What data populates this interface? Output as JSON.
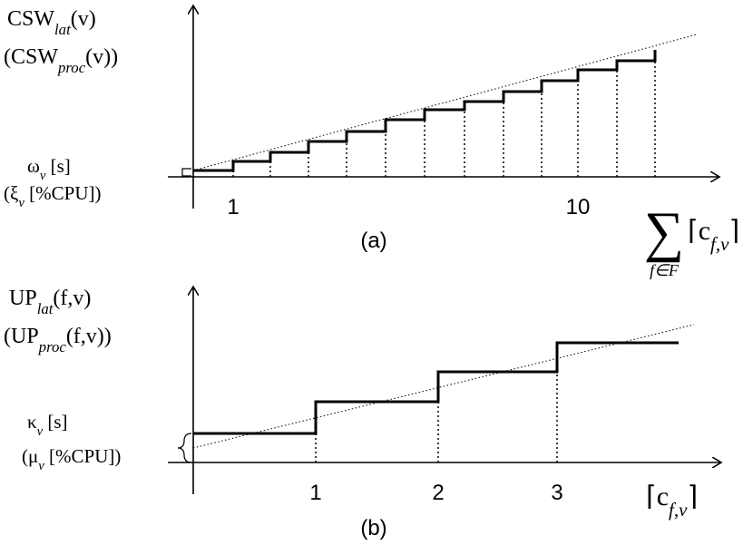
{
  "panels": [
    {
      "y_label": [
        [
          "CSW",
          "lat",
          "(v)"
        ],
        [
          "(CSW",
          "proc",
          "(v))"
        ]
      ],
      "offset_label": [
        [
          "ω",
          "v",
          " [s]"
        ],
        [
          "(ξ",
          "v",
          " [%CPU])"
        ]
      ],
      "x_ticks": [
        "1",
        "10"
      ],
      "x_label": {
        "sum": "∑",
        "sum_under": "f∈F",
        "term": [
          "⌈c",
          "f,v",
          "⌉"
        ]
      },
      "caption": "(a)"
    },
    {
      "y_label": [
        [
          "UP",
          "lat",
          "(f,v)"
        ],
        [
          "(UP",
          "proc",
          "(f,v))"
        ]
      ],
      "offset_label": [
        [
          "κ",
          "v",
          " [s]"
        ],
        [
          "(μ",
          "v",
          " [%CPU])"
        ]
      ],
      "x_ticks": [
        "1",
        "2",
        "3"
      ],
      "x_label": {
        "term": [
          "⌈c",
          "f,v",
          "⌉"
        ]
      },
      "caption": "(b)"
    }
  ]
}
